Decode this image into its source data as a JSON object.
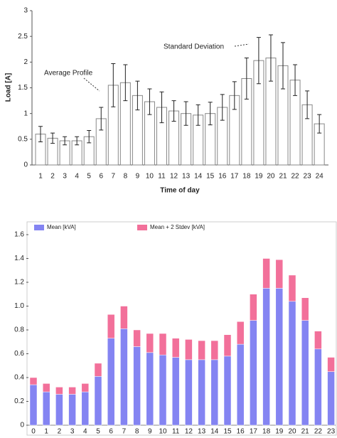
{
  "chart_data": [
    {
      "type": "errorbar",
      "categories": [
        "1",
        "2",
        "3",
        "4",
        "5",
        "6",
        "7",
        "8",
        "9",
        "10",
        "11",
        "12",
        "13",
        "14",
        "15",
        "16",
        "17",
        "18",
        "19",
        "20",
        "21",
        "22",
        "23",
        "24"
      ],
      "values": [
        0.6,
        0.52,
        0.47,
        0.47,
        0.55,
        0.9,
        1.55,
        1.6,
        1.35,
        1.23,
        1.12,
        1.05,
        1.0,
        0.97,
        1.0,
        1.12,
        1.35,
        1.68,
        2.03,
        2.08,
        1.93,
        1.65,
        1.17,
        0.8
      ],
      "errors": [
        0.15,
        0.1,
        0.08,
        0.08,
        0.12,
        0.22,
        0.42,
        0.35,
        0.28,
        0.25,
        0.3,
        0.2,
        0.23,
        0.2,
        0.22,
        0.25,
        0.27,
        0.4,
        0.45,
        0.45,
        0.45,
        0.3,
        0.27,
        0.18
      ],
      "color": "#ffffff",
      "ylabel": "Load [A]",
      "xlabel": "Time of day",
      "annotations": [
        "Average Profile",
        "Standard Deviation"
      ],
      "ylim": [
        0,
        3
      ],
      "yticks": [
        0,
        0.5,
        1,
        1.5,
        2,
        2.5,
        3
      ]
    },
    {
      "type": "stacked_bar",
      "categories": [
        "0",
        "1",
        "2",
        "3",
        "4",
        "5",
        "6",
        "7",
        "8",
        "9",
        "10",
        "11",
        "12",
        "13",
        "14",
        "15",
        "16",
        "17",
        "18",
        "19",
        "20",
        "21",
        "22",
        "23"
      ],
      "series": [
        {
          "name": "Mean [kVA]",
          "color": "#8484f2",
          "values": [
            0.34,
            0.28,
            0.26,
            0.26,
            0.28,
            0.41,
            0.73,
            0.81,
            0.66,
            0.61,
            0.59,
            0.57,
            0.55,
            0.55,
            0.55,
            0.58,
            0.68,
            0.88,
            1.15,
            1.15,
            1.04,
            0.88,
            0.64,
            0.45
          ]
        },
        {
          "name": "Mean + 2 Stdev [kVA]",
          "color": "#f2709a",
          "values": [
            0.06,
            0.07,
            0.06,
            0.06,
            0.07,
            0.11,
            0.2,
            0.19,
            0.14,
            0.16,
            0.18,
            0.16,
            0.17,
            0.16,
            0.16,
            0.18,
            0.19,
            0.22,
            0.25,
            0.24,
            0.22,
            0.19,
            0.15,
            0.12
          ]
        }
      ],
      "ylim": [
        0,
        1.6
      ],
      "yticks": [
        0,
        0.2,
        0.4,
        0.6,
        0.8,
        {
          "value": 1,
          "label": "1.0"
        },
        1.2,
        1.4,
        1.6
      ]
    }
  ]
}
